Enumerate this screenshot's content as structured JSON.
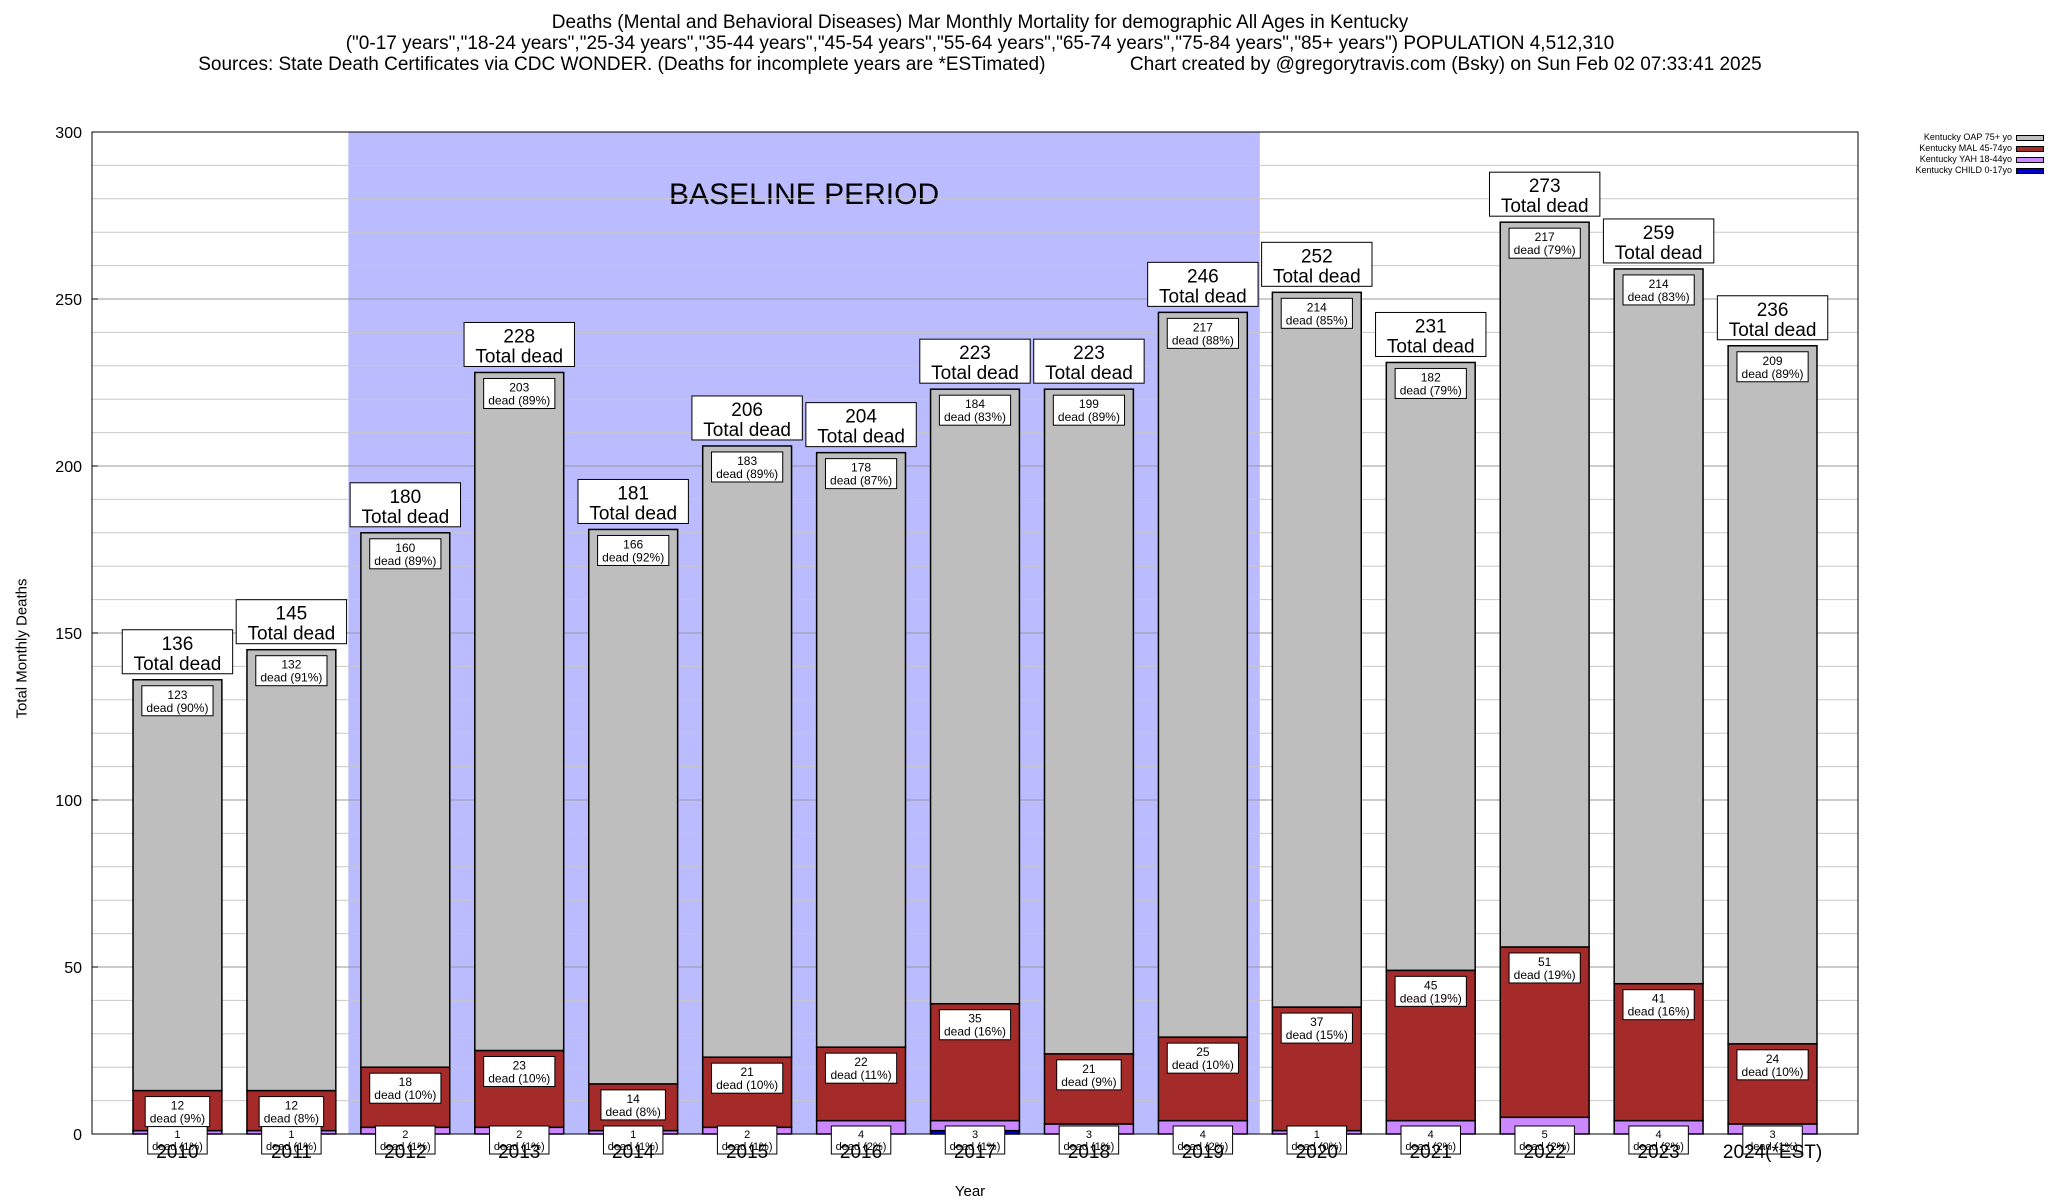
{
  "title": {
    "line1": "Deaths (Mental and Behavioral Diseases) Mar Monthly Mortality for demographic All Ages in Kentucky",
    "line2": "(\"0-17 years\",\"18-24 years\",\"25-34 years\",\"35-44 years\",\"45-54 years\",\"55-64 years\",\"65-74 years\",\"75-84 years\",\"85+ years\") POPULATION 4,512,310",
    "line3": "Sources: State Death Certificates via CDC WONDER. (Deaths for incomplete years are *ESTimated)                Chart created by @gregorytravis.com (Bsky) on Sun Feb 02 07:33:41 2025"
  },
  "chart_data": {
    "type": "bar",
    "stacked": true,
    "categories": [
      "2010",
      "2011",
      "2012",
      "2013",
      "2014",
      "2015",
      "2016",
      "2017",
      "2018",
      "2019",
      "2020",
      "2021",
      "2022",
      "2023",
      "2024(*EST)"
    ],
    "xlabel": "Year",
    "ylabel": "Total Monthly Deaths",
    "ylim": [
      0,
      300
    ],
    "yticks": [
      0,
      50,
      100,
      150,
      200,
      250,
      300
    ],
    "grid": true,
    "legend_position": "top-right",
    "baseline": {
      "label": "BASELINE PERIOD",
      "from": "2012",
      "to": "2019"
    },
    "total_label": "Total dead",
    "series": [
      {
        "name": "Kentucky CHILD 0-17yo",
        "color": "#0000cc",
        "values": [
          0,
          0,
          0,
          0,
          0,
          0,
          0,
          1,
          0,
          0,
          0,
          0,
          0,
          0,
          0
        ]
      },
      {
        "name": "Kentucky YAH 18-44yo",
        "color": "#cc88ff",
        "values": [
          1,
          1,
          2,
          2,
          1,
          2,
          4,
          3,
          3,
          4,
          1,
          4,
          5,
          4,
          3
        ],
        "labels": [
          "1\ndead (1%)",
          "1\ndead (1%)",
          "2\ndead (1%)",
          "2\ndead (1%)",
          "1\ndead (1%)",
          "2\ndead (1%)",
          "4\ndead (2%)",
          "3\ndead (1%)",
          "3\ndead (1%)",
          "4\ndead (2%)",
          "1\ndead (0%)",
          "4\ndead (2%)",
          "5\ndead (2%)",
          "4\ndead (2%)",
          "3\ndead (1%)"
        ]
      },
      {
        "name": "Kentucky MAL 45-74yo",
        "color": "#a52a2a",
        "values": [
          12,
          12,
          18,
          23,
          14,
          21,
          22,
          35,
          21,
          25,
          37,
          45,
          51,
          41,
          24
        ],
        "labels": [
          "12\ndead (9%)",
          "12\ndead (8%)",
          "18\ndead (10%)",
          "23\ndead (10%)",
          "14\ndead (8%)",
          "21\ndead (10%)",
          "22\ndead (11%)",
          "35\ndead (16%)",
          "21\ndead (9%)",
          "25\ndead (10%)",
          "37\ndead (15%)",
          "45\ndead (19%)",
          "51\ndead (19%)",
          "41\ndead (16%)",
          "24\ndead (10%)"
        ]
      },
      {
        "name": "Kentucky OAP 75+ yo",
        "color": "#bebebe",
        "values": [
          123,
          132,
          160,
          203,
          166,
          183,
          178,
          184,
          199,
          217,
          214,
          182,
          217,
          214,
          209
        ],
        "labels": [
          "123\ndead (90%)",
          "132\ndead (91%)",
          "160\ndead (89%)",
          "203\ndead (89%)",
          "166\ndead (92%)",
          "183\ndead (89%)",
          "178\ndead (87%)",
          "184\ndead (83%)",
          "199\ndead (89%)",
          "217\ndead (88%)",
          "214\ndead (85%)",
          "182\ndead (79%)",
          "217\ndead (79%)",
          "214\ndead (83%)",
          "209\ndead (89%)"
        ]
      }
    ],
    "totals": [
      136,
      145,
      180,
      228,
      181,
      206,
      204,
      223,
      223,
      246,
      252,
      231,
      273,
      259,
      236
    ]
  }
}
